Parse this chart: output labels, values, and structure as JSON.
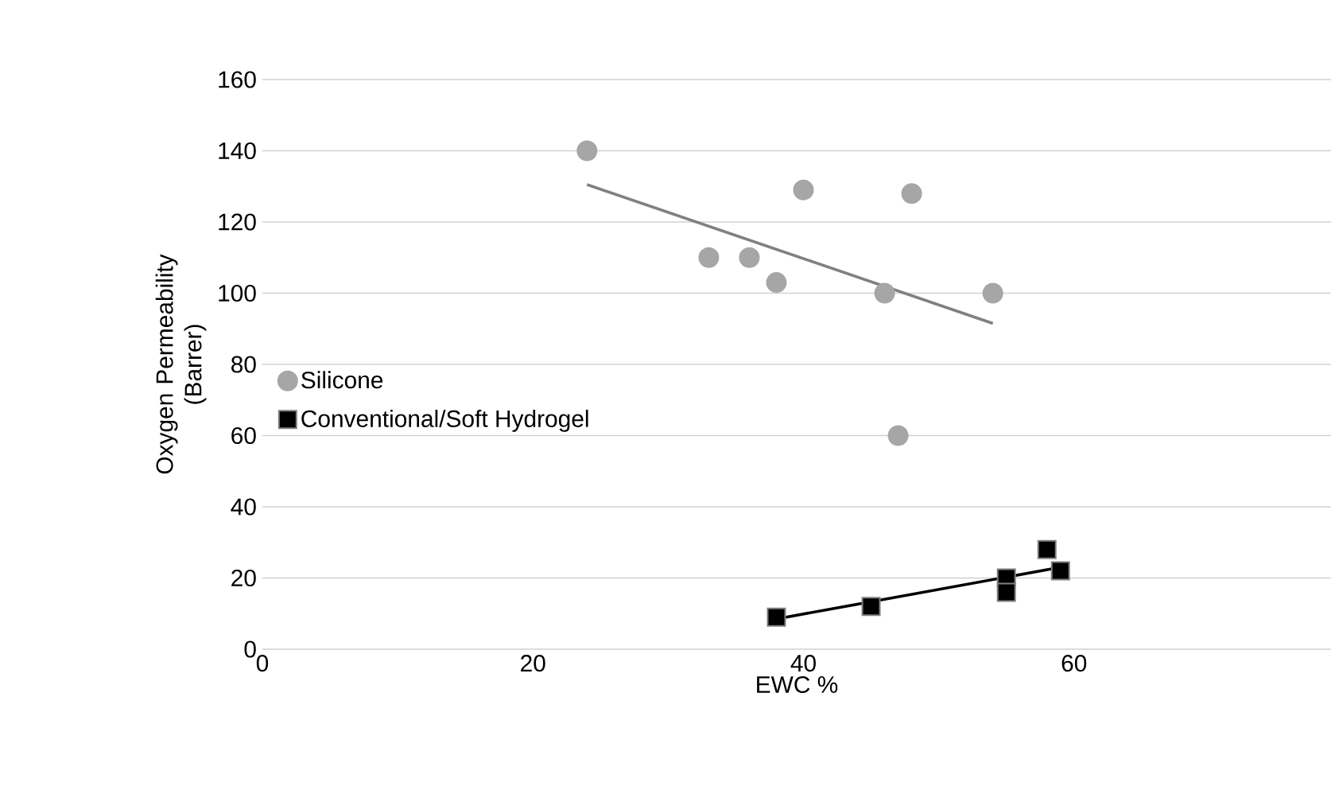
{
  "chart_data": {
    "type": "scatter",
    "xlabel": "EWC %",
    "ylabel": "Oxygen Permeability (Barrer)",
    "xlim": [
      0,
      79
    ],
    "ylim": [
      0,
      160
    ],
    "xticks": [
      0,
      20,
      40,
      60
    ],
    "yticks": [
      0,
      20,
      40,
      60,
      80,
      100,
      120,
      140,
      160
    ],
    "grid": "y",
    "legend": "left",
    "series": [
      {
        "name": "Silicone",
        "color": "#a6a6a6",
        "marker": "circle",
        "x": [
          24,
          33,
          36,
          38,
          40,
          46,
          47,
          48,
          54
        ],
        "values": [
          140,
          110,
          110,
          103,
          129,
          100,
          60,
          128,
          100
        ]
      },
      {
        "name": "Conventional/Soft Hydrogel",
        "color": "#000000",
        "marker": "square",
        "x": [
          38,
          45,
          55,
          55,
          58,
          59
        ],
        "values": [
          9,
          12,
          20,
          16,
          28,
          22
        ]
      },
      {
        "type": "line",
        "color": "#808080",
        "marker": "none",
        "x": [
          24,
          54
        ],
        "values": [
          130.5,
          91.5
        ]
      },
      {
        "type": "line",
        "color": "#000000",
        "marker": "none",
        "x": [
          38,
          59
        ],
        "values": [
          8.5,
          23
        ]
      }
    ]
  }
}
